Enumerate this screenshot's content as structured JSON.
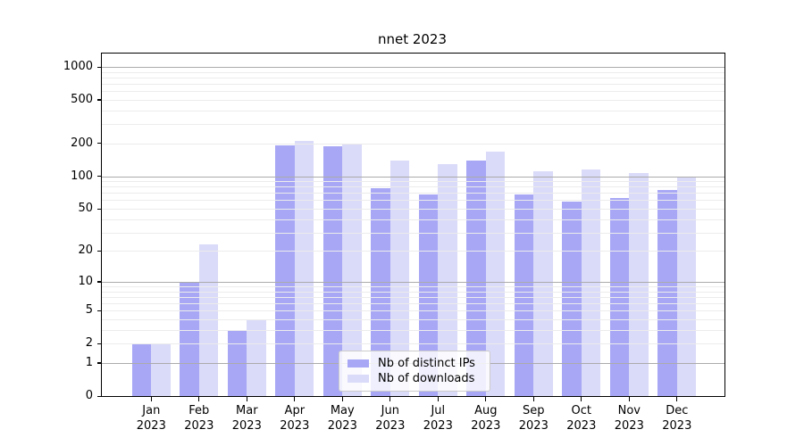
{
  "title": "nnet 2023",
  "colors": {
    "background": "#ffffff",
    "axis": "#000000",
    "grid_major": "#ababab",
    "grid_minor": "#ececec",
    "ips_bar": "#a7a7f6",
    "downloads_bar": "#dadaf9",
    "legend_border": "#cccccc"
  },
  "legend": {
    "items": [
      {
        "label": "Nb of distinct IPs",
        "color": "#a7a7f6"
      },
      {
        "label": "Nb of downloads",
        "color": "#dadaf9"
      }
    ]
  },
  "chart_data": {
    "type": "bar",
    "title": "nnet 2023",
    "categories": [
      "Jan 2023",
      "Feb 2023",
      "Mar 2023",
      "Apr 2023",
      "May 2023",
      "Jun 2023",
      "Jul 2023",
      "Aug 2023",
      "Sep 2023",
      "Oct 2023",
      "Nov 2023",
      "Dec 2023"
    ],
    "month_labels": [
      "Jan",
      "Feb",
      "Mar",
      "Apr",
      "May",
      "Jun",
      "Jul",
      "Aug",
      "Sep",
      "Oct",
      "Nov",
      "Dec"
    ],
    "year_label": "2023",
    "series": [
      {
        "name": "Nb of distinct IPs",
        "color": "#a7a7f6",
        "values": [
          2,
          10,
          3,
          193,
          188,
          77,
          68,
          140,
          68,
          58,
          63,
          75
        ]
      },
      {
        "name": "Nb of downloads",
        "color": "#dadaf9",
        "values": [
          2,
          23,
          4,
          212,
          198,
          140,
          130,
          168,
          110,
          115,
          107,
          100
        ]
      }
    ],
    "y_ticks": [
      0,
      1,
      2,
      5,
      10,
      20,
      50,
      100,
      200,
      500,
      1000
    ],
    "y_scale": "log1p",
    "ylim": [
      0,
      1330
    ],
    "xlabel": "",
    "ylabel": "",
    "grid": {
      "horizontal_major": [
        1,
        10,
        100,
        1000
      ],
      "minor_between_decades": true
    },
    "legend_position": "lower-center"
  }
}
